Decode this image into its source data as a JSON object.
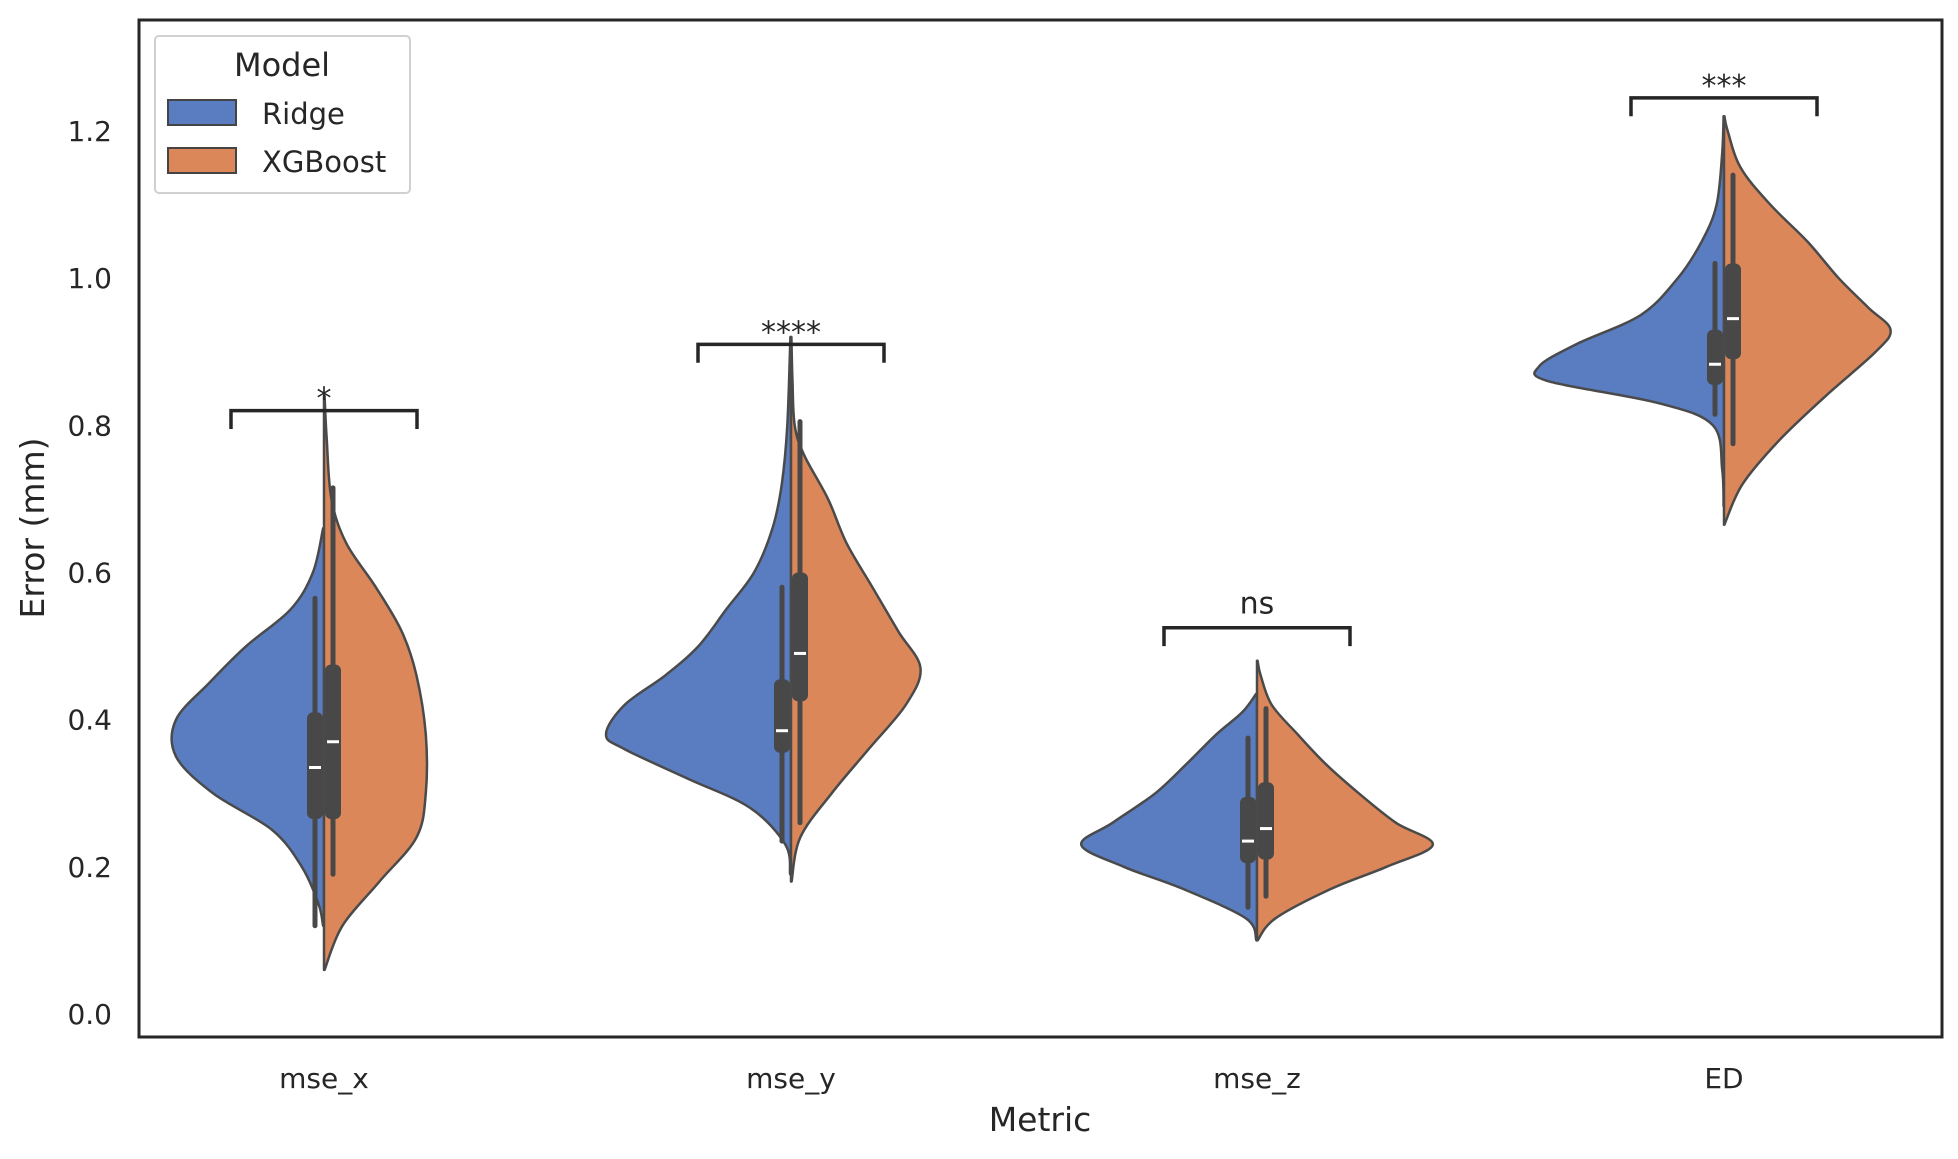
{
  "chart_data": {
    "type": "violin",
    "split": true,
    "title": "",
    "xlabel": "Metric",
    "ylabel": "Error (mm)",
    "ylim": [
      -0.03,
      1.35
    ],
    "yticks": [
      "0.0",
      "0.2",
      "0.4",
      "0.6",
      "0.8",
      "1.0",
      "1.2"
    ],
    "grid": false,
    "categories": [
      "mse_x",
      "mse_y",
      "mse_z",
      "ED"
    ],
    "legend": {
      "title": "Model",
      "placement": "upper-left",
      "entries": [
        {
          "name": "Ridge",
          "color": "#5a7dc2"
        },
        {
          "name": "XGBoost",
          "color": "#dc8759"
        }
      ]
    },
    "series": [
      {
        "name": "Ridge",
        "color": "#5a7dc2",
        "violins": [
          {
            "category": "mse_x",
            "min": 0.12,
            "q1": 0.265,
            "median": 0.335,
            "q3": 0.41,
            "max": 0.565,
            "density": [
              [
                0.12,
                0.005
              ],
              [
                0.15,
                0.03
              ],
              [
                0.2,
                0.12
              ],
              [
                0.25,
                0.28
              ],
              [
                0.3,
                0.6
              ],
              [
                0.35,
                0.8
              ],
              [
                0.4,
                0.8
              ],
              [
                0.45,
                0.62
              ],
              [
                0.5,
                0.42
              ],
              [
                0.55,
                0.18
              ],
              [
                0.6,
                0.06
              ],
              [
                0.66,
                0.005
              ]
            ]
          },
          {
            "category": "mse_y",
            "min": 0.235,
            "q1": 0.355,
            "median": 0.385,
            "q3": 0.455,
            "max": 0.58,
            "density": [
              [
                0.19,
                0.005
              ],
              [
                0.23,
                0.03
              ],
              [
                0.28,
                0.22
              ],
              [
                0.32,
                0.56
              ],
              [
                0.36,
                0.9
              ],
              [
                0.38,
                1.0
              ],
              [
                0.42,
                0.9
              ],
              [
                0.46,
                0.68
              ],
              [
                0.5,
                0.5
              ],
              [
                0.55,
                0.35
              ],
              [
                0.6,
                0.2
              ],
              [
                0.66,
                0.1
              ],
              [
                0.72,
                0.05
              ],
              [
                0.8,
                0.02
              ],
              [
                0.92,
                0.003
              ]
            ]
          },
          {
            "category": "mse_z",
            "min": 0.145,
            "q1": 0.205,
            "median": 0.235,
            "q3": 0.295,
            "max": 0.375,
            "density": [
              [
                0.1,
                0.003
              ],
              [
                0.13,
                0.06
              ],
              [
                0.17,
                0.4
              ],
              [
                0.2,
                0.72
              ],
              [
                0.23,
                0.95
              ],
              [
                0.26,
                0.78
              ],
              [
                0.3,
                0.55
              ],
              [
                0.34,
                0.38
              ],
              [
                0.38,
                0.22
              ],
              [
                0.41,
                0.08
              ],
              [
                0.435,
                0.005
              ]
            ]
          },
          {
            "category": "ED",
            "min": 0.815,
            "q1": 0.855,
            "median": 0.883,
            "q3": 0.93,
            "max": 1.02,
            "density": [
              [
                0.69,
                0.002
              ],
              [
                0.74,
                0.01
              ],
              [
                0.8,
                0.06
              ],
              [
                0.83,
                0.35
              ],
              [
                0.86,
                0.95
              ],
              [
                0.88,
                1.0
              ],
              [
                0.91,
                0.8
              ],
              [
                0.95,
                0.45
              ],
              [
                1.0,
                0.25
              ],
              [
                1.05,
                0.12
              ],
              [
                1.1,
                0.04
              ],
              [
                1.17,
                0.01
              ],
              [
                1.22,
                0.002
              ]
            ]
          }
        ]
      },
      {
        "name": "XGBoost",
        "color": "#dc8759",
        "violins": [
          {
            "category": "mse_x",
            "min": 0.19,
            "q1": 0.265,
            "median": 0.37,
            "q3": 0.475,
            "max": 0.715,
            "density": [
              [
                0.06,
                0.003
              ],
              [
                0.12,
                0.1
              ],
              [
                0.18,
                0.3
              ],
              [
                0.24,
                0.5
              ],
              [
                0.3,
                0.55
              ],
              [
                0.38,
                0.55
              ],
              [
                0.46,
                0.5
              ],
              [
                0.52,
                0.42
              ],
              [
                0.58,
                0.28
              ],
              [
                0.64,
                0.12
              ],
              [
                0.7,
                0.04
              ],
              [
                0.78,
                0.015
              ],
              [
                0.84,
                0.003
              ]
            ]
          },
          {
            "category": "mse_y",
            "min": 0.26,
            "q1": 0.425,
            "median": 0.49,
            "q3": 0.6,
            "max": 0.805,
            "density": [
              [
                0.18,
                0.003
              ],
              [
                0.24,
                0.05
              ],
              [
                0.3,
                0.22
              ],
              [
                0.36,
                0.42
              ],
              [
                0.42,
                0.62
              ],
              [
                0.47,
                0.7
              ],
              [
                0.52,
                0.58
              ],
              [
                0.58,
                0.44
              ],
              [
                0.64,
                0.3
              ],
              [
                0.7,
                0.2
              ],
              [
                0.76,
                0.07
              ],
              [
                0.8,
                0.02
              ],
              [
                0.86,
                0.008
              ],
              [
                0.92,
                0.002
              ]
            ]
          },
          {
            "category": "mse_z",
            "min": 0.16,
            "q1": 0.21,
            "median": 0.252,
            "q3": 0.315,
            "max": 0.415,
            "density": [
              [
                0.1,
                0.003
              ],
              [
                0.13,
                0.1
              ],
              [
                0.17,
                0.4
              ],
              [
                0.2,
                0.7
              ],
              [
                0.23,
                0.95
              ],
              [
                0.26,
                0.75
              ],
              [
                0.3,
                0.55
              ],
              [
                0.34,
                0.37
              ],
              [
                0.38,
                0.22
              ],
              [
                0.42,
                0.08
              ],
              [
                0.46,
                0.02
              ],
              [
                0.48,
                0.003
              ]
            ]
          },
          {
            "category": "ED",
            "min": 0.775,
            "q1": 0.89,
            "median": 0.945,
            "q3": 1.02,
            "max": 1.14,
            "density": [
              [
                0.665,
                0.002
              ],
              [
                0.72,
                0.1
              ],
              [
                0.78,
                0.3
              ],
              [
                0.84,
                0.55
              ],
              [
                0.9,
                0.82
              ],
              [
                0.93,
                0.9
              ],
              [
                0.96,
                0.78
              ],
              [
                1.0,
                0.62
              ],
              [
                1.05,
                0.45
              ],
              [
                1.1,
                0.25
              ],
              [
                1.15,
                0.09
              ],
              [
                1.2,
                0.02
              ],
              [
                1.22,
                0.002
              ]
            ]
          }
        ]
      }
    ],
    "annotations": [
      {
        "category": "mse_x",
        "label": "*",
        "bracket_top": 0.82,
        "bracket_bottom": 0.795
      },
      {
        "category": "mse_y",
        "label": "****",
        "bracket_top": 0.91,
        "bracket_bottom": 0.885
      },
      {
        "category": "mse_z",
        "label": "ns",
        "bracket_top": 0.525,
        "bracket_bottom": 0.5
      },
      {
        "category": "ED",
        "label": "***",
        "bracket_top": 1.245,
        "bracket_bottom": 1.22
      }
    ]
  }
}
